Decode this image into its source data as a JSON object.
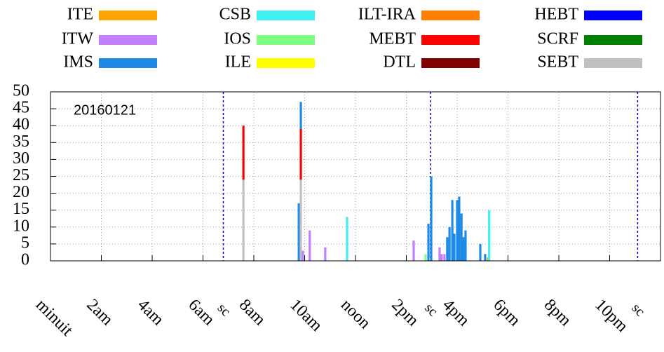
{
  "chart_data": {
    "type": "stacked_bar",
    "annotation": "20160121",
    "x": [
      7.59,
      9.77,
      9.85,
      9.93,
      10.2,
      10.81,
      11.67,
      14.29,
      14.76,
      14.87,
      14.98,
      15.31,
      15.39,
      15.5,
      15.61,
      15.7,
      15.81,
      15.89,
      16.0,
      16.08,
      16.17,
      16.25,
      16.33,
      16.91,
      17.1,
      17.21,
      17.26
    ],
    "series": [
      {
        "name": "ITE",
        "color": "#ffa500",
        "values": [
          0,
          0,
          0,
          0,
          0,
          0,
          0,
          0,
          0,
          0,
          0,
          0,
          0,
          0,
          0,
          0,
          0,
          0,
          0,
          0,
          0,
          0,
          0,
          0,
          0,
          1,
          0
        ]
      },
      {
        "name": "ITW",
        "color": "#c080ff",
        "values": [
          0,
          0,
          0,
          3,
          9,
          4,
          0,
          6,
          0,
          0,
          0,
          4,
          2,
          2,
          0,
          0,
          0,
          0,
          0,
          0,
          0,
          0,
          0,
          0,
          0,
          0,
          0
        ]
      },
      {
        "name": "IMS",
        "color": "#1e8ae6",
        "values": [
          0,
          17,
          8,
          0,
          0,
          0,
          0,
          0,
          0,
          11,
          25,
          0,
          0,
          0,
          7,
          10,
          18,
          8,
          18,
          19,
          14,
          7,
          9,
          5,
          2,
          0,
          0
        ]
      },
      {
        "name": "CSB",
        "color": "#40f0f0",
        "values": [
          0,
          0,
          0,
          0,
          0,
          0,
          13,
          0,
          0,
          0,
          0,
          0,
          0,
          0,
          0,
          0,
          0,
          0,
          0,
          0,
          0,
          0,
          0,
          0,
          0,
          0,
          15
        ]
      },
      {
        "name": "IOS",
        "color": "#80ff80",
        "values": [
          0,
          0,
          0,
          0,
          0,
          0,
          0,
          0,
          2,
          0,
          0,
          0,
          0,
          0,
          0,
          0,
          0,
          0,
          0,
          0,
          0,
          0,
          0,
          0,
          0,
          0,
          0
        ]
      },
      {
        "name": "ILE",
        "color": "#ffff00",
        "values": [
          0,
          0,
          0,
          0,
          0,
          0,
          0,
          0,
          0,
          0,
          0,
          0,
          0,
          0,
          0,
          0,
          0,
          0,
          0,
          0,
          0,
          0,
          0,
          0,
          0,
          0,
          0
        ]
      },
      {
        "name": "ILT-IRA",
        "color": "#ff7f00",
        "values": [
          0,
          0,
          0,
          0,
          0,
          0,
          0,
          0,
          0,
          0,
          0,
          0,
          0,
          0,
          0,
          0,
          0,
          0,
          0,
          0,
          0,
          0,
          0,
          0,
          0,
          0,
          0
        ]
      },
      {
        "name": "MEBT",
        "color": "#ff0000",
        "values": [
          16,
          0,
          15,
          0,
          0,
          0,
          0,
          0,
          0,
          0,
          0,
          0,
          0,
          0,
          0,
          0,
          0,
          0,
          0,
          0,
          0,
          0,
          0,
          0,
          0,
          0,
          0
        ]
      },
      {
        "name": "DTL",
        "color": "#800000",
        "values": [
          0,
          0,
          0,
          0,
          0,
          0,
          0,
          0,
          0,
          0,
          0,
          0,
          0,
          0,
          0,
          0,
          0,
          0,
          0,
          0,
          0,
          0,
          0,
          0,
          0,
          0,
          0
        ]
      },
      {
        "name": "HEBT",
        "color": "#0000ff",
        "values": [
          0,
          0,
          0,
          0,
          0,
          0,
          0,
          0,
          0,
          0,
          0,
          0,
          0,
          0,
          0,
          0,
          0,
          0,
          0,
          0,
          0,
          0,
          0,
          0,
          0,
          0,
          0
        ]
      },
      {
        "name": "SCRF",
        "color": "#008000",
        "values": [
          0,
          0,
          0,
          0,
          0,
          0,
          0,
          0,
          0,
          0,
          0,
          0,
          0,
          0,
          0,
          0,
          0,
          0,
          0,
          0,
          0,
          0,
          0,
          0,
          0,
          0,
          0
        ]
      },
      {
        "name": "SEBT",
        "color": "#c0c0c0",
        "values": [
          24,
          0,
          24,
          0,
          0,
          0,
          0,
          0,
          0,
          0,
          0,
          0,
          0,
          0,
          0,
          0,
          0,
          0,
          0,
          0,
          0,
          0,
          0,
          0,
          0,
          0,
          0
        ]
      }
    ],
    "markers": [
      {
        "x": 6.8,
        "label": "sc"
      },
      {
        "x": 14.95,
        "label": "sc"
      },
      {
        "x": 23.1,
        "label": "sc"
      }
    ],
    "xlim": [
      0,
      24
    ],
    "xticks": [
      {
        "value": 0,
        "label": "minuit"
      },
      {
        "value": 2,
        "label": "2am"
      },
      {
        "value": 4,
        "label": "4am"
      },
      {
        "value": 6,
        "label": "6am"
      },
      {
        "value": 8,
        "label": "8am"
      },
      {
        "value": 10,
        "label": "10am"
      },
      {
        "value": 12,
        "label": "noon"
      },
      {
        "value": 14,
        "label": "2pm"
      },
      {
        "value": 16,
        "label": "4pm"
      },
      {
        "value": 18,
        "label": "6pm"
      },
      {
        "value": 20,
        "label": "8pm"
      },
      {
        "value": 22,
        "label": "10pm"
      }
    ],
    "ylim": [
      0,
      50
    ],
    "yticks": [
      0,
      5,
      10,
      15,
      20,
      25,
      30,
      35,
      40,
      45,
      50
    ],
    "grid": true
  }
}
